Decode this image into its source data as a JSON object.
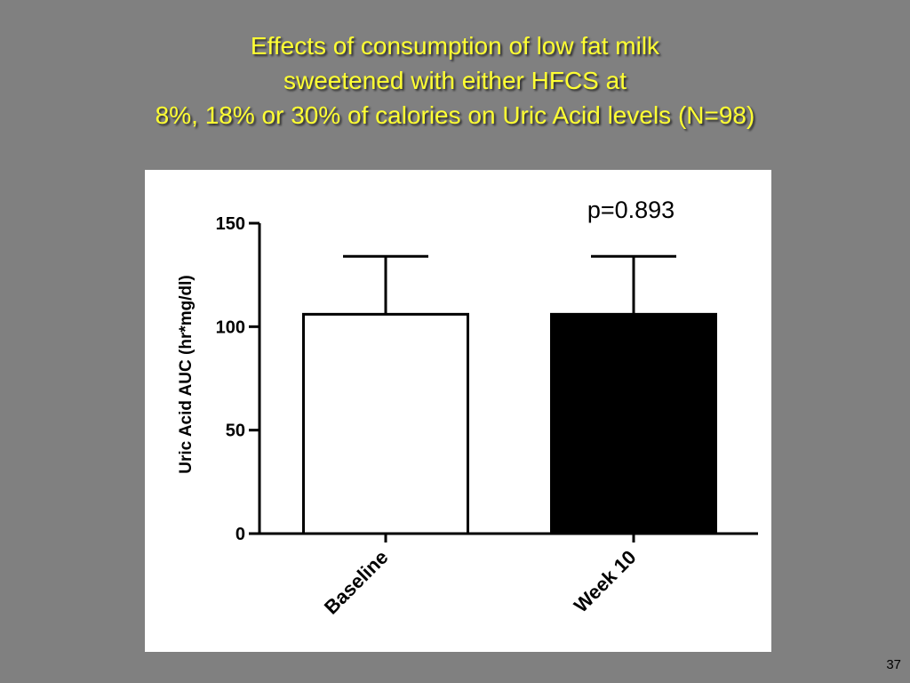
{
  "slide": {
    "title_lines": [
      "Effects of consumption of low fat milk",
      "sweetened with either HFCS at",
      "8%, 18% or 30% of calories on Uric Acid levels (N=98)"
    ],
    "page_number": "37",
    "title_color": "#ffff33",
    "background_color": "#808080"
  },
  "chart_data": {
    "type": "bar",
    "title": "",
    "ylabel": "Uric Acid AUC (hr*mg/dl)",
    "xlabel": "",
    "categories": [
      "Baseline",
      "Week 10"
    ],
    "values": [
      106,
      106
    ],
    "error_upper": [
      134,
      134
    ],
    "bar_fill_colors": [
      "#ffffff",
      "#000000"
    ],
    "bar_stroke_color": "#000000",
    "ylim": [
      0,
      150
    ],
    "yticks": [
      0,
      50,
      100,
      150
    ],
    "annotation": "p=0.893",
    "grid": false,
    "legend": "none"
  }
}
